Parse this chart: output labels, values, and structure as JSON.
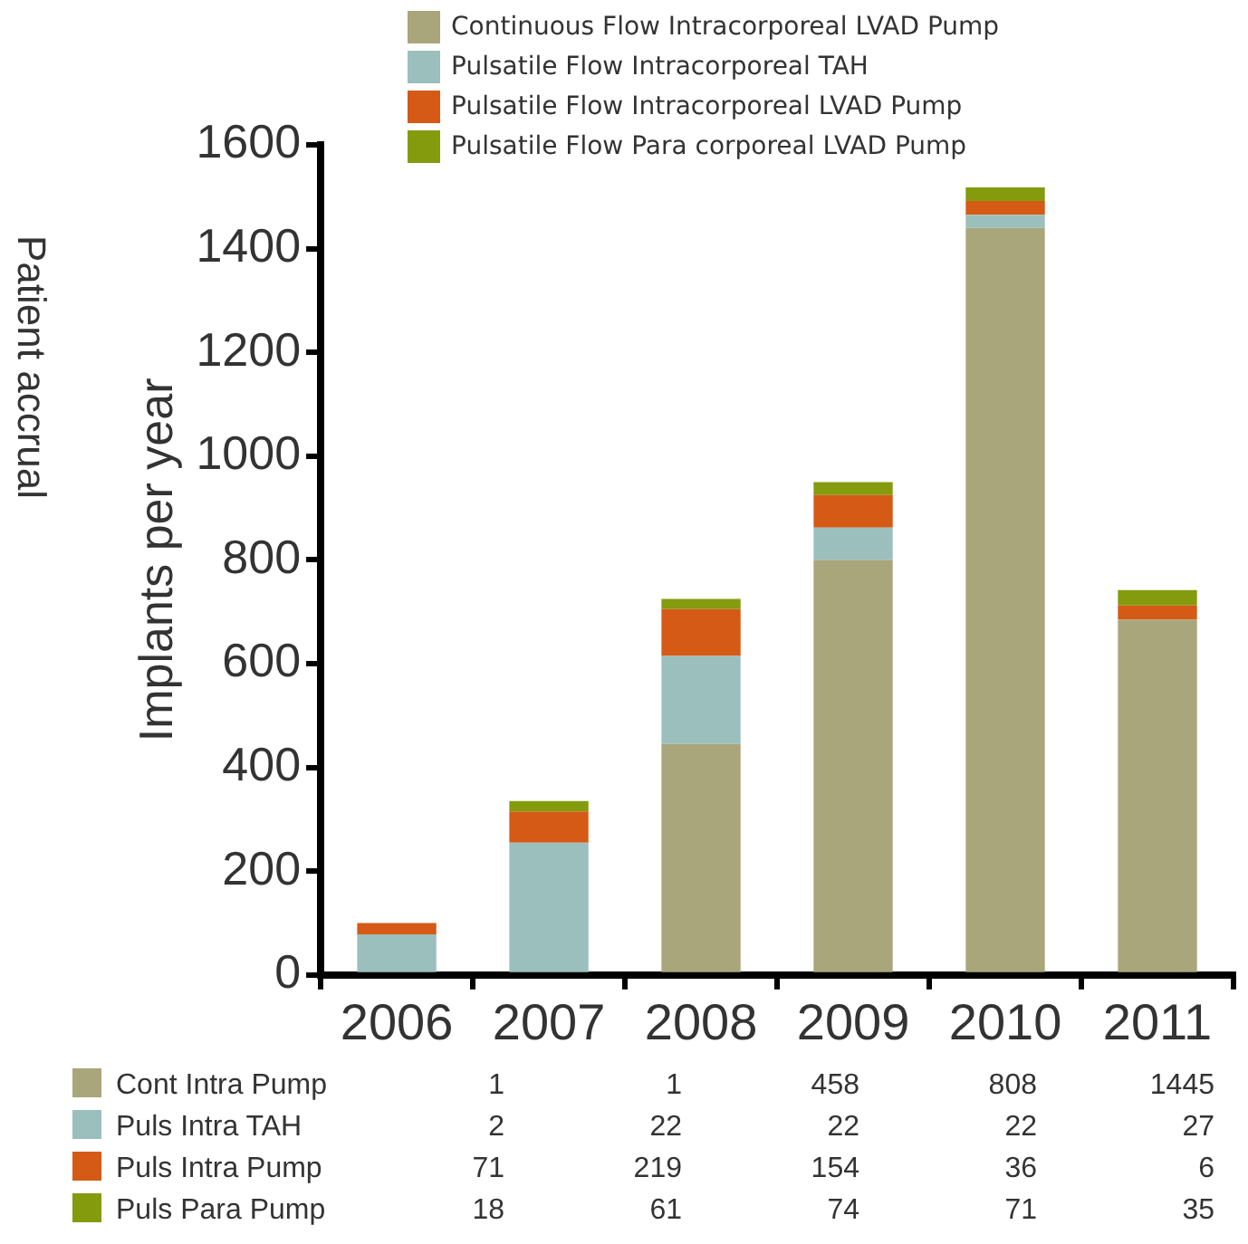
{
  "chart_data": {
    "type": "bar",
    "stacked": true,
    "ylabel": "Implants per year",
    "categories": [
      "2006",
      "2007",
      "2008",
      "2009",
      "2010",
      "2011"
    ],
    "series": [
      {
        "name": "Continuous Flow Intracorporeal LVAD Pump",
        "color": "#a9a67c",
        "values": [
          0,
          0,
          445,
          800,
          1440,
          685
        ]
      },
      {
        "name": "Pulsatile Flow Intracorporeal TAH",
        "color": "#9bbfbd",
        "values": [
          78,
          255,
          170,
          62,
          25,
          0
        ]
      },
      {
        "name": "Pulsatile Flow Intracorporeal LVAD Pump",
        "color": "#d55a16",
        "values": [
          22,
          60,
          90,
          63,
          27,
          27
        ]
      },
      {
        "name": "Pulsatile Flow Para corporeal LVAD Pump",
        "color": "#839b0d",
        "values": [
          0,
          20,
          20,
          25,
          26,
          30
        ]
      }
    ],
    "ylim": [
      0,
      1600
    ],
    "yticks": [
      0,
      200,
      400,
      600,
      800,
      1000,
      1200,
      1400,
      1600
    ],
    "grid": false,
    "legend": "top",
    "annotations": [
      "Patient accrual",
      "Cont Intra Pump",
      "1",
      "1",
      "458",
      "808",
      "1445",
      "Puls Intra TAH",
      "2",
      "22",
      "22",
      "22",
      "27",
      "Puls Intra Pump",
      "71",
      "219",
      "154",
      "36",
      "6",
      "Puls Para Pump",
      "18",
      "61",
      "74",
      "71",
      "35"
    ]
  }
}
